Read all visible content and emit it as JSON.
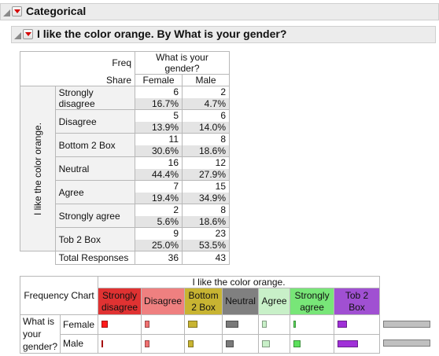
{
  "outline1": {
    "title": "Categorical"
  },
  "outline2": {
    "title": "I like the color orange. By What is your gender?"
  },
  "contingency": {
    "freq_label": "Freq",
    "share_label": "Share",
    "col_var": "What is your gender?",
    "columns": [
      "Female",
      "Male"
    ],
    "row_var": "I like the color orange.",
    "rows": [
      {
        "label": "Strongly disagree",
        "cells": [
          {
            "freq": "6",
            "share": "16.7%"
          },
          {
            "freq": "2",
            "share": "4.7%"
          }
        ]
      },
      {
        "label": "Disagree",
        "cells": [
          {
            "freq": "5",
            "share": "13.9%"
          },
          {
            "freq": "6",
            "share": "14.0%"
          }
        ]
      },
      {
        "label": "Bottom 2 Box",
        "cells": [
          {
            "freq": "11",
            "share": "30.6%"
          },
          {
            "freq": "8",
            "share": "18.6%"
          }
        ]
      },
      {
        "label": "Neutral",
        "cells": [
          {
            "freq": "16",
            "share": "44.4%"
          },
          {
            "freq": "12",
            "share": "27.9%"
          }
        ]
      },
      {
        "label": "Agree",
        "cells": [
          {
            "freq": "7",
            "share": "19.4%"
          },
          {
            "freq": "15",
            "share": "34.9%"
          }
        ]
      },
      {
        "label": "Strongly agree",
        "cells": [
          {
            "freq": "2",
            "share": "5.6%"
          },
          {
            "freq": "8",
            "share": "18.6%"
          }
        ]
      },
      {
        "label": "Tob 2 Box",
        "cells": [
          {
            "freq": "9",
            "share": "25.0%"
          },
          {
            "freq": "23",
            "share": "53.5%"
          }
        ]
      }
    ],
    "total_label": "Total Responses",
    "totals": [
      "36",
      "43"
    ]
  },
  "freq_chart": {
    "label": "Frequency Chart",
    "col_var": "I like the color orange.",
    "row_var": "What is your gender?",
    "categories": [
      {
        "label": "Strongly disagree",
        "color": "#e03232",
        "bar_color": "#ff1a1a"
      },
      {
        "label": "Disagree",
        "color": "#ef8080",
        "bar_color": "#f07070"
      },
      {
        "label": "Bottom 2 Box",
        "color": "#c8b432",
        "bar_color": "#c8b432"
      },
      {
        "label": "Neutral",
        "color": "#808080",
        "bar_color": "#7a7a7a"
      },
      {
        "label": "Agree",
        "color": "#c8f0c8",
        "bar_color": "#c8f0c8"
      },
      {
        "label": "Strongly agree",
        "color": "#78e678",
        "bar_color": "#5ce05c"
      },
      {
        "label": "Tob 2 Box",
        "color": "#a050d2",
        "bar_color": "#a030d8"
      },
      {
        "label": "",
        "color": "#ffffff",
        "bar_color": "#c0c0c0"
      }
    ],
    "rows": [
      {
        "label": "Female",
        "shares": [
          16.7,
          13.9,
          30.6,
          44.4,
          19.4,
          5.6,
          25.0,
          100
        ]
      },
      {
        "label": "Male",
        "shares": [
          4.7,
          14.0,
          18.6,
          27.9,
          34.9,
          18.6,
          53.5,
          100
        ]
      }
    ]
  }
}
